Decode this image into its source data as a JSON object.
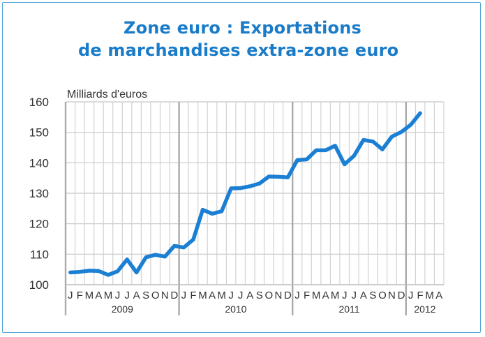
{
  "title_line1": "Zone euro : Exportations",
  "title_line2": "de marchandises extra-zone euro",
  "chart_data": {
    "type": "line",
    "ylabel": "Milliards d'euros",
    "ylim": [
      100,
      160
    ],
    "yticks": [
      100,
      110,
      120,
      130,
      140,
      150,
      160
    ],
    "grid": true,
    "month_labels": [
      "J",
      "F",
      "M",
      "A",
      "M",
      "J",
      "J",
      "A",
      "S",
      "O",
      "N",
      "D"
    ],
    "years": [
      "2009",
      "2010",
      "2011",
      "2012"
    ],
    "x_months_2012_shown": 4,
    "series": [
      {
        "color": "#1b7fd4",
        "x_start": "2009-01",
        "values": [
          104.0,
          104.2,
          104.6,
          104.5,
          103.2,
          104.4,
          108.3,
          104.0,
          109.0,
          109.8,
          109.2,
          112.7,
          112.2,
          114.8,
          124.6,
          123.3,
          124.1,
          131.6,
          131.7,
          132.3,
          133.2,
          135.5,
          135.4,
          135.2,
          140.9,
          141.1,
          144.1,
          144.1,
          145.6,
          139.5,
          142.3,
          147.5,
          147.0,
          144.4,
          148.6,
          150.1,
          152.5,
          156.3
        ]
      }
    ]
  }
}
